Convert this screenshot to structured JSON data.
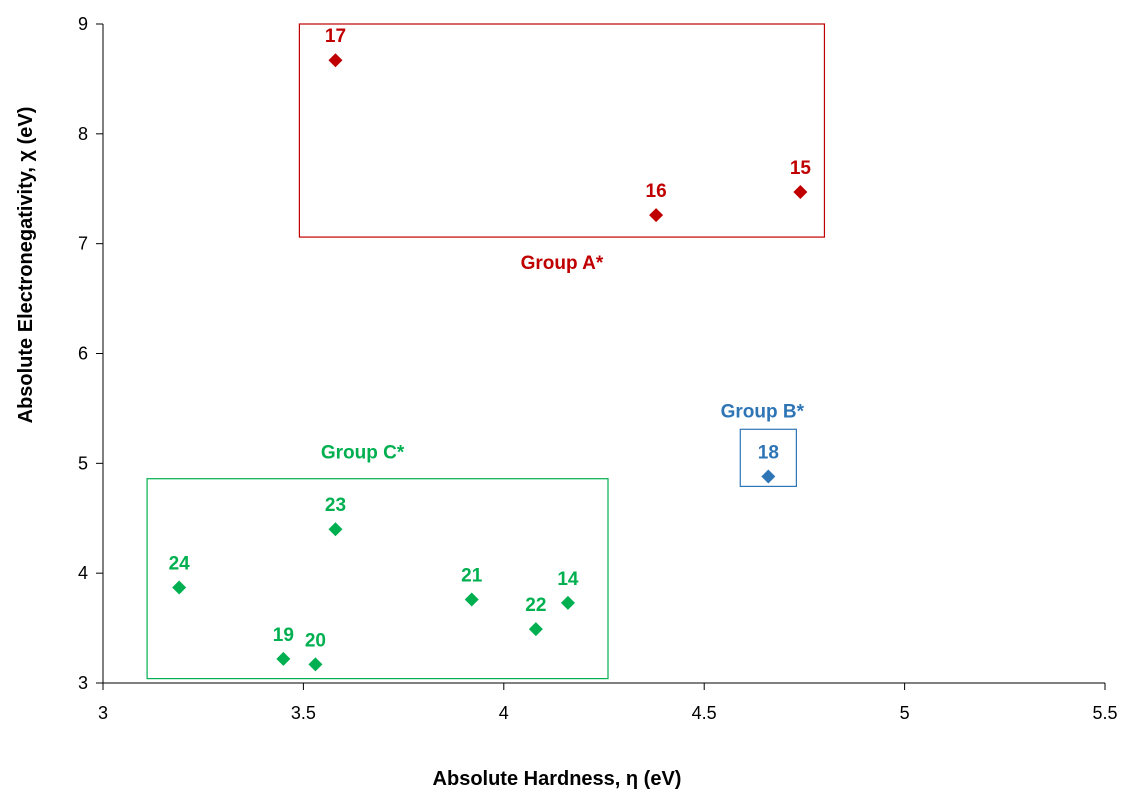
{
  "chart_data": {
    "type": "scatter",
    "xlabel": "Absolute Hardness, η (eV)",
    "ylabel": "Absolute Electronegativity, χ (eV)",
    "xlim": [
      3,
      5.5
    ],
    "ylim": [
      3,
      9
    ],
    "x_ticks": [
      "3",
      "3.5",
      "4",
      "4.5",
      "5",
      "5.5"
    ],
    "y_ticks": [
      "3",
      "4",
      "5",
      "6",
      "7",
      "8",
      "9"
    ],
    "grid": false,
    "series": [
      {
        "group": "A",
        "color": "#C00000",
        "points": [
          {
            "label": "17",
            "x": 3.58,
            "y": 8.67
          },
          {
            "label": "16",
            "x": 4.38,
            "y": 7.26
          },
          {
            "label": "15",
            "x": 4.74,
            "y": 7.47
          }
        ]
      },
      {
        "group": "B",
        "color": "#2E75B6",
        "points": [
          {
            "label": "18",
            "x": 4.66,
            "y": 4.88
          }
        ]
      },
      {
        "group": "C",
        "color": "#00B050",
        "points": [
          {
            "label": "24",
            "x": 3.19,
            "y": 3.87
          },
          {
            "label": "23",
            "x": 3.58,
            "y": 4.4
          },
          {
            "label": "19",
            "x": 3.45,
            "y": 3.22
          },
          {
            "label": "20",
            "x": 3.53,
            "y": 3.17
          },
          {
            "label": "21",
            "x": 3.92,
            "y": 3.76
          },
          {
            "label": "22",
            "x": 4.08,
            "y": 3.49
          },
          {
            "label": "14",
            "x": 4.16,
            "y": 3.73
          }
        ]
      }
    ],
    "groups": [
      {
        "name": "Group A*",
        "color": "#C00000",
        "box": {
          "x": [
            3.49,
            4.8
          ],
          "y": [
            7.06,
            9.0
          ]
        }
      },
      {
        "name": "Group B*",
        "color": "#2E75B6",
        "box": {
          "x": [
            4.59,
            4.73
          ],
          "y": [
            4.79,
            5.31
          ]
        }
      },
      {
        "name": "Group C*",
        "color": "#00B050",
        "box": {
          "x": [
            3.11,
            4.26
          ],
          "y": [
            3.04,
            4.86
          ]
        }
      }
    ]
  }
}
